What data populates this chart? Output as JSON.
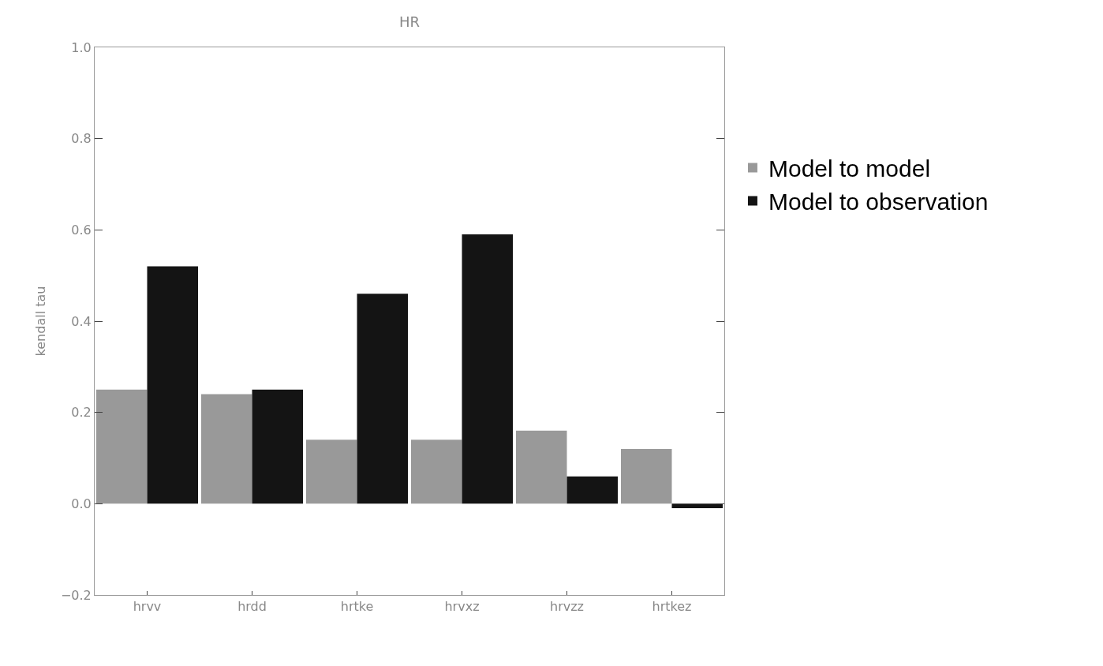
{
  "chart_data": {
    "type": "bar",
    "title": "HR",
    "ylabel": "kendall tau",
    "categories": [
      "hrvv",
      "hrdd",
      "hrtke",
      "hrvxz",
      "hrvzz",
      "hrtkez"
    ],
    "series": [
      {
        "name": "Model to model",
        "color": "#999999",
        "values": [
          0.25,
          0.24,
          0.14,
          0.14,
          0.16,
          0.12
        ]
      },
      {
        "name": "Model to observation",
        "color": "#141414",
        "values": [
          0.52,
          0.25,
          0.46,
          0.59,
          0.06,
          -0.01
        ]
      }
    ],
    "ylim": [
      -0.2,
      1.0
    ],
    "yticks": [
      {
        "value": -0.2,
        "label": "−0.2"
      },
      {
        "value": 0,
        "label": "0.0"
      },
      {
        "value": 0.2,
        "label": "0.2"
      },
      {
        "value": 0.4,
        "label": "0.4"
      },
      {
        "value": 0.6,
        "label": "0.6"
      },
      {
        "value": 0.8,
        "label": "0.8"
      },
      {
        "value": 1.0,
        "label": "1.0"
      }
    ],
    "legend": "right"
  }
}
